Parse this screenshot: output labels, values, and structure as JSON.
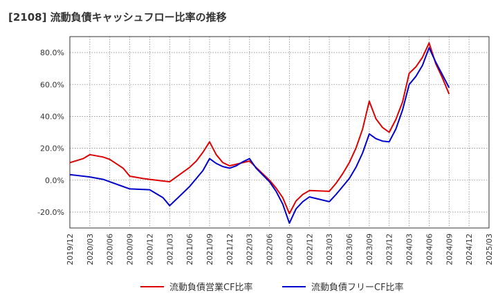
{
  "chart_data": {
    "type": "line",
    "title": "[2108]  流動負債キャッシュフロー比率の推移",
    "x": [
      "2019/12",
      "2020/03",
      "2020/06",
      "2020/09",
      "2020/12",
      "2021/03",
      "2021/06",
      "2021/09",
      "2021/12",
      "2022/03",
      "2022/06",
      "2022/09",
      "2022/12",
      "2023/03",
      "2023/06",
      "2023/09",
      "2023/12",
      "2024/03",
      "2024/06",
      "2024/09",
      "2024/12",
      "2025/03"
    ],
    "ylim": [
      -30,
      90
    ],
    "yticks": [
      -20,
      0,
      20,
      40,
      60,
      80
    ],
    "ytick_labels": [
      "-20.0%",
      "0.0%",
      "20.0%",
      "40.0%",
      "60.0%",
      "80.0%"
    ],
    "grid": true,
    "legend_position": "bottom",
    "series": [
      {
        "name": "流動負債営業CF比率",
        "color": "#dd0000",
        "values": [
          [
            "2019/12",
            11
          ],
          [
            "2020/02",
            13.5
          ],
          [
            "2020/03",
            16
          ],
          [
            "2020/05",
            14.5
          ],
          [
            "2020/06",
            13
          ],
          [
            "2020/08",
            7.5
          ],
          [
            "2020/09",
            2.5
          ],
          [
            "2020/11",
            1
          ],
          [
            "2020/12",
            0.5
          ],
          [
            "2021/03",
            -1
          ],
          [
            "2021/06",
            8
          ],
          [
            "2021/07",
            12
          ],
          [
            "2021/08",
            17.5
          ],
          [
            "2021/09",
            24
          ],
          [
            "2021/10",
            16
          ],
          [
            "2021/11",
            11
          ],
          [
            "2021/12",
            9
          ],
          [
            "2022/01",
            10
          ],
          [
            "2022/02",
            11
          ],
          [
            "2022/03",
            12
          ],
          [
            "2022/04",
            8
          ],
          [
            "2022/06",
            0
          ],
          [
            "2022/07",
            -5
          ],
          [
            "2022/08",
            -11
          ],
          [
            "2022/09",
            -21
          ],
          [
            "2022/10",
            -13
          ],
          [
            "2022/11",
            -9
          ],
          [
            "2022/12",
            -6.5
          ],
          [
            "2023/03",
            -7
          ],
          [
            "2023/04",
            -2
          ],
          [
            "2023/05",
            4
          ],
          [
            "2023/06",
            11
          ],
          [
            "2023/07",
            20
          ],
          [
            "2023/08",
            32
          ],
          [
            "2023/09",
            49.5
          ],
          [
            "2023/10",
            38.5
          ],
          [
            "2023/11",
            33
          ],
          [
            "2023/12",
            30
          ],
          [
            "2024/01",
            38
          ],
          [
            "2024/02",
            49
          ],
          [
            "2024/03",
            67
          ],
          [
            "2024/04",
            71
          ],
          [
            "2024/05",
            77
          ],
          [
            "2024/06",
            86
          ],
          [
            "2024/07",
            73
          ],
          [
            "2024/08",
            64
          ],
          [
            "2024/09",
            54
          ]
        ]
      },
      {
        "name": "流動負債フリーCF比率",
        "color": "#0000cc",
        "values": [
          [
            "2019/12",
            3.5
          ],
          [
            "2020/03",
            2
          ],
          [
            "2020/05",
            0.5
          ],
          [
            "2020/06",
            -1
          ],
          [
            "2020/08",
            -4
          ],
          [
            "2020/09",
            -5.5
          ],
          [
            "2020/12",
            -6
          ],
          [
            "2021/02",
            -11
          ],
          [
            "2021/03",
            -16
          ],
          [
            "2021/06",
            -4
          ],
          [
            "2021/08",
            6
          ],
          [
            "2021/09",
            13.5
          ],
          [
            "2021/10",
            10.5
          ],
          [
            "2021/11",
            8.5
          ],
          [
            "2021/12",
            7.5
          ],
          [
            "2022/01",
            9
          ],
          [
            "2022/02",
            11.5
          ],
          [
            "2022/03",
            13.5
          ],
          [
            "2022/04",
            7.5
          ],
          [
            "2022/06",
            -1
          ],
          [
            "2022/07",
            -7
          ],
          [
            "2022/08",
            -15
          ],
          [
            "2022/09",
            -27
          ],
          [
            "2022/10",
            -18
          ],
          [
            "2022/11",
            -13.5
          ],
          [
            "2022/12",
            -10.5
          ],
          [
            "2023/03",
            -13.5
          ],
          [
            "2023/04",
            -9
          ],
          [
            "2023/05",
            -4
          ],
          [
            "2023/06",
            1
          ],
          [
            "2023/07",
            8
          ],
          [
            "2023/08",
            17
          ],
          [
            "2023/09",
            29
          ],
          [
            "2023/10",
            26
          ],
          [
            "2023/11",
            24.5
          ],
          [
            "2023/12",
            24
          ],
          [
            "2024/01",
            32
          ],
          [
            "2024/02",
            44
          ],
          [
            "2024/03",
            60
          ],
          [
            "2024/04",
            65
          ],
          [
            "2024/05",
            72
          ],
          [
            "2024/06",
            83
          ],
          [
            "2024/07",
            74
          ],
          [
            "2024/08",
            66
          ],
          [
            "2024/09",
            58
          ]
        ]
      }
    ]
  }
}
